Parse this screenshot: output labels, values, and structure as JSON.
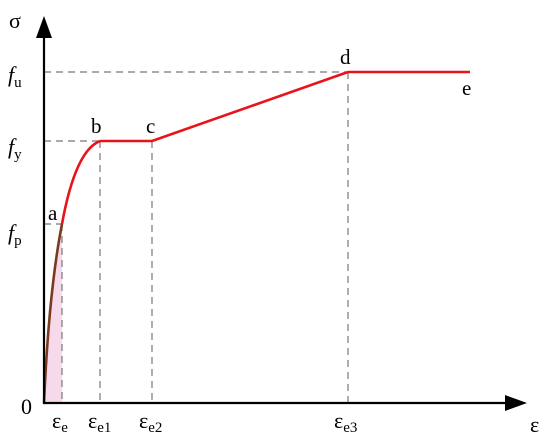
{
  "chart_data": {
    "type": "line",
    "colors": {
      "curve": "#e8141b",
      "elastic": "#7a3a1e",
      "axis": "#000000",
      "guide": "#777777",
      "shade": "#f7d9ec"
    },
    "axes": {
      "y_symbol": "σ",
      "x_symbol": "ε",
      "origin_label": "0"
    },
    "y_ticks": [
      {
        "base": "f",
        "sub": "p"
      },
      {
        "base": "f",
        "sub": "y"
      },
      {
        "base": "f",
        "sub": "u"
      }
    ],
    "x_ticks": [
      {
        "base": "ε",
        "sub": "e"
      },
      {
        "base": "ε",
        "sub": "e1"
      },
      {
        "base": "ε",
        "sub": "e2"
      },
      {
        "base": "ε",
        "sub": "e3"
      }
    ],
    "points": [
      {
        "label": "a"
      },
      {
        "label": "b"
      },
      {
        "label": "c"
      },
      {
        "label": "d"
      },
      {
        "label": "e"
      }
    ]
  }
}
